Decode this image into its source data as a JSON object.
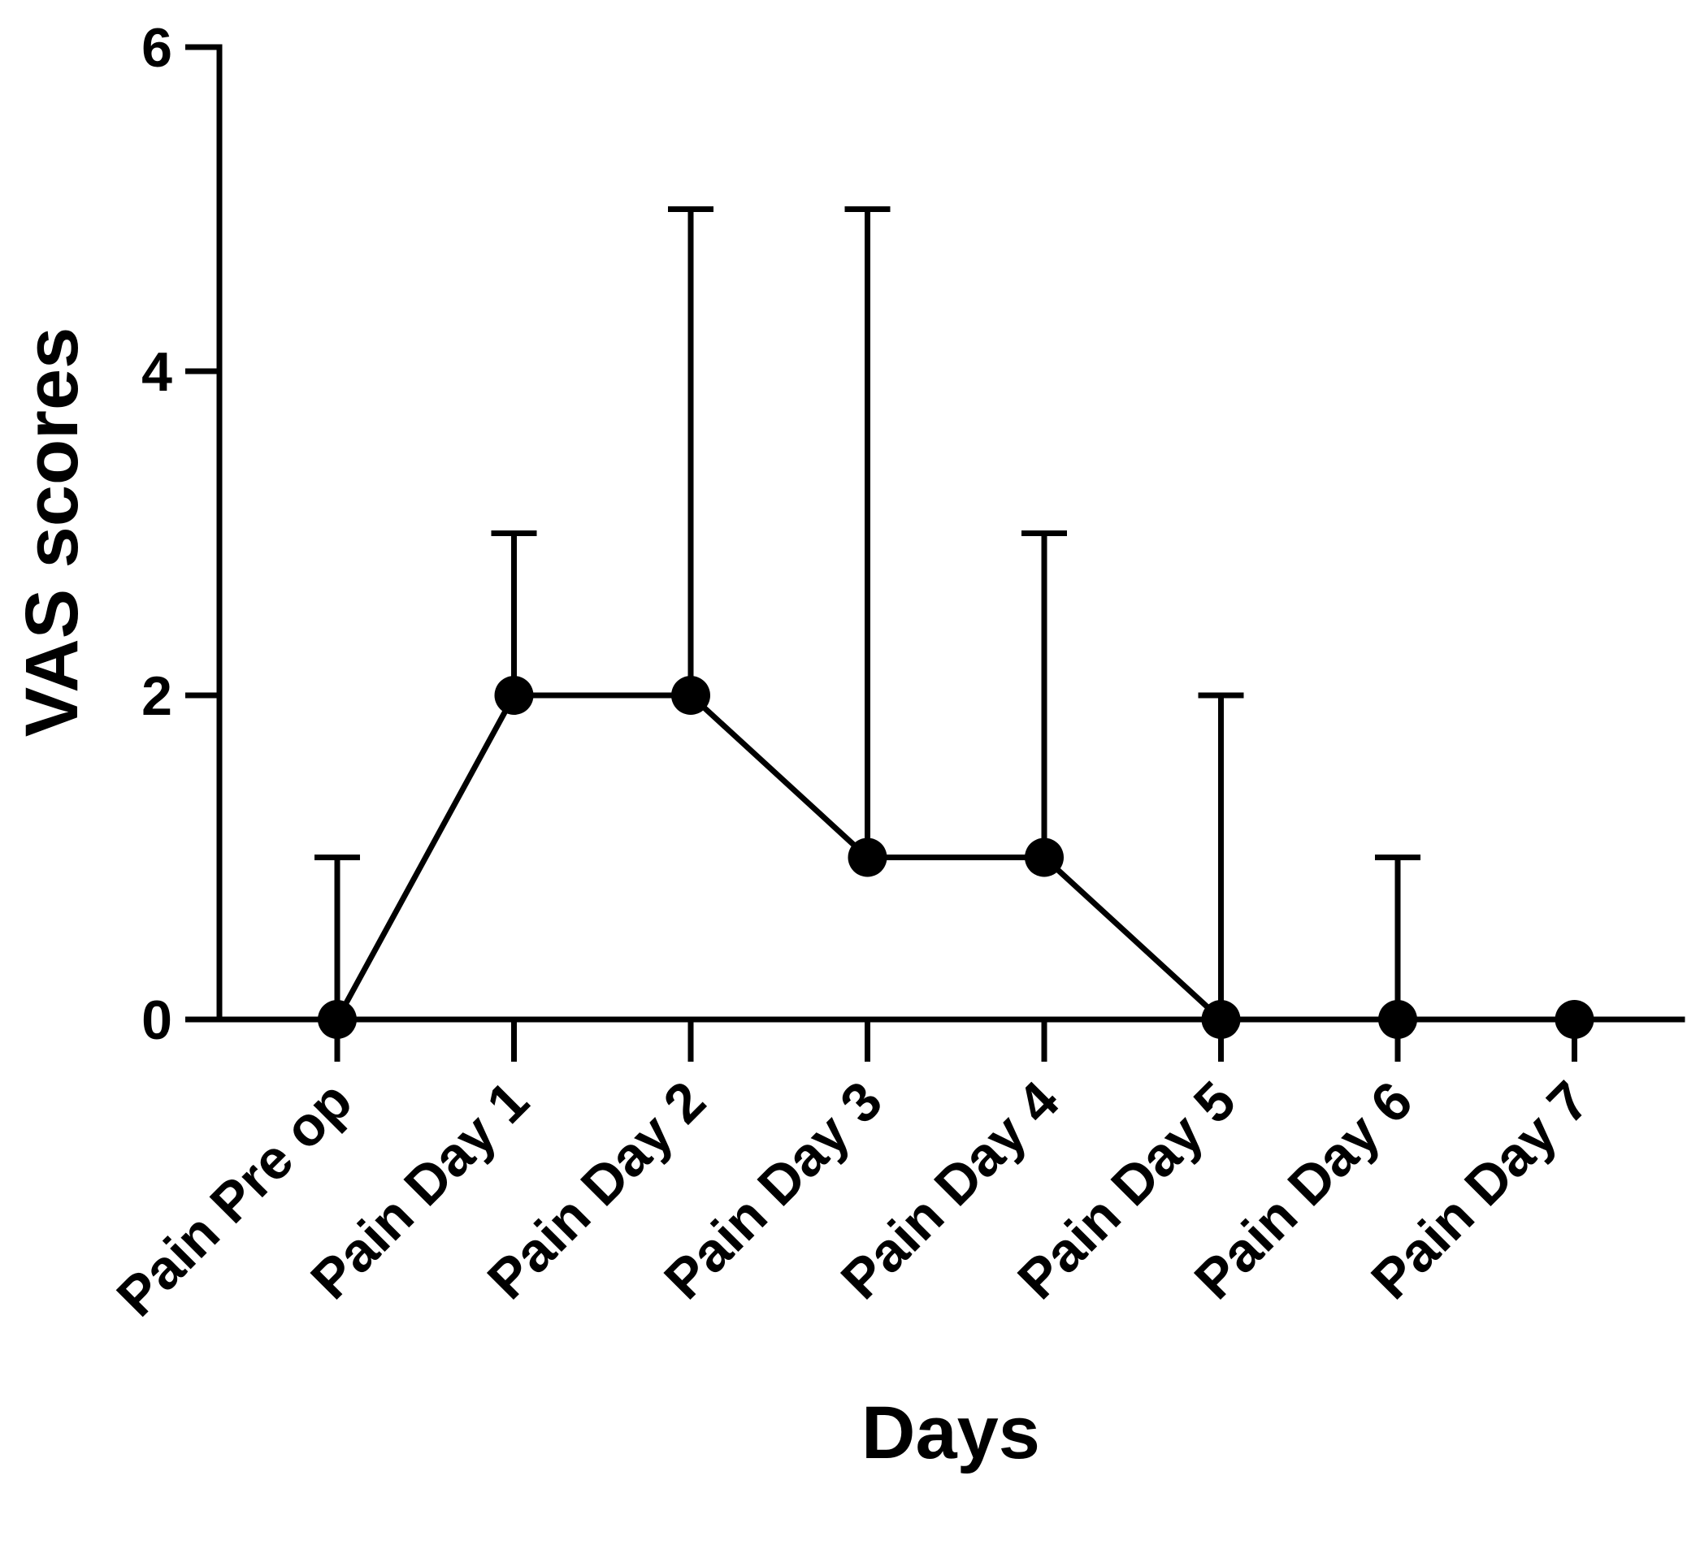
{
  "chart_data": {
    "type": "line",
    "xlabel": "Days",
    "ylabel": "VAS scores",
    "categories": [
      "Pain Pre op",
      "Pain Day 1",
      "Pain Day 2",
      "Pain Day 3",
      "Pain Day 4",
      "Pain Day 5",
      "Pain Day 6",
      "Pain Day 7"
    ],
    "values": [
      0,
      2,
      2,
      1,
      1,
      0,
      0,
      0
    ],
    "error_upper": [
      1,
      3,
      5,
      5,
      3,
      2,
      1,
      0
    ],
    "ylim": [
      0,
      6
    ],
    "yticks": [
      "0",
      "2",
      "4",
      "6"
    ],
    "grid": false,
    "legend": "none",
    "color": "#000000"
  }
}
